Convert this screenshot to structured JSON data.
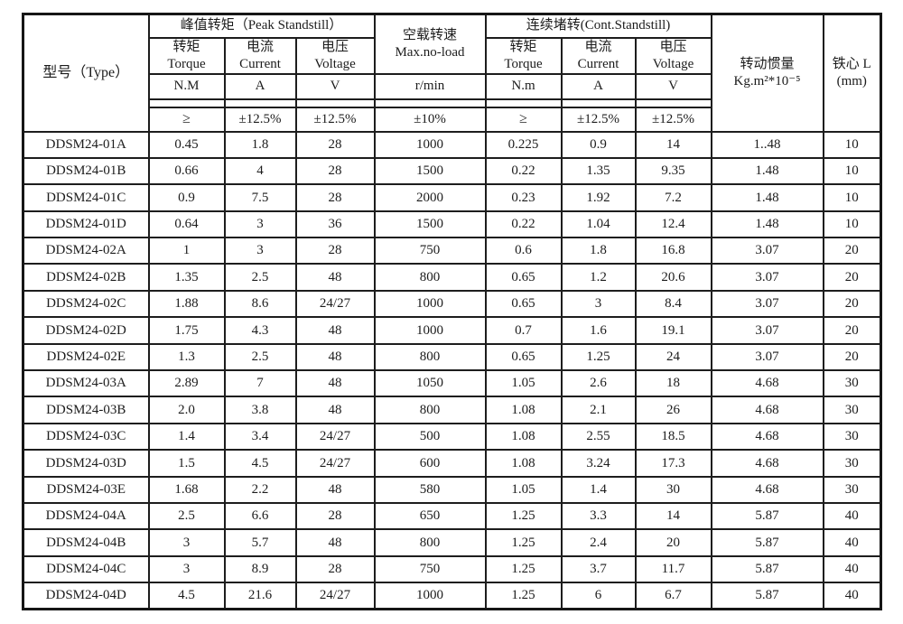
{
  "table": {
    "header": {
      "type_label": "型号（Type）",
      "peak_group": "峰值转矩（Peak Standstill）",
      "cont_group": "连续堵转(Cont.Standstill)",
      "noload_line1": "空载转速",
      "noload_line2": "Max.no-load",
      "inertia_line1": "转动惯量",
      "inertia_line2": "Kg.m²*10⁻⁵",
      "core_line1": "铁心 L",
      "core_line2": "(mm)",
      "sub": [
        {
          "cn": "转矩",
          "en": "Torque"
        },
        {
          "cn": "电流",
          "en": "Current"
        },
        {
          "cn": "电压",
          "en": "Voltage"
        },
        {
          "cn": "转矩",
          "en": "Torque"
        },
        {
          "cn": "电流",
          "en": "Current"
        },
        {
          "cn": "电压",
          "en": "Voltage"
        }
      ],
      "units": [
        "N.M",
        "A",
        "V",
        "r/min",
        "N.m",
        "A",
        "V"
      ],
      "tolerances": [
        "≥",
        "±12.5%",
        "±12.5%",
        "±10%",
        "≥",
        "±12.5%",
        "±12.5%"
      ]
    },
    "rows": [
      [
        "DDSM24-01A",
        "0.45",
        "1.8",
        "28",
        "1000",
        "0.225",
        "0.9",
        "14",
        "1..48",
        "10"
      ],
      [
        "DDSM24-01B",
        "0.66",
        "4",
        "28",
        "1500",
        "0.22",
        "1.35",
        "9.35",
        "1.48",
        "10"
      ],
      [
        "DDSM24-01C",
        "0.9",
        "7.5",
        "28",
        "2000",
        "0.23",
        "1.92",
        "7.2",
        "1.48",
        "10"
      ],
      [
        "DDSM24-01D",
        "0.64",
        "3",
        "36",
        "1500",
        "0.22",
        "1.04",
        "12.4",
        "1.48",
        "10"
      ],
      [
        "DDSM24-02A",
        "1",
        "3",
        "28",
        "750",
        "0.6",
        "1.8",
        "16.8",
        "3.07",
        "20"
      ],
      [
        "DDSM24-02B",
        "1.35",
        "2.5",
        "48",
        "800",
        "0.65",
        "1.2",
        "20.6",
        "3.07",
        "20"
      ],
      [
        "DDSM24-02C",
        "1.88",
        "8.6",
        "24/27",
        "1000",
        "0.65",
        "3",
        "8.4",
        "3.07",
        "20"
      ],
      [
        "DDSM24-02D",
        "1.75",
        "4.3",
        "48",
        "1000",
        "0.7",
        "1.6",
        "19.1",
        "3.07",
        "20"
      ],
      [
        "DDSM24-02E",
        "1.3",
        "2.5",
        "48",
        "800",
        "0.65",
        "1.25",
        "24",
        "3.07",
        "20"
      ],
      [
        "DDSM24-03A",
        "2.89",
        "7",
        "48",
        "1050",
        "1.05",
        "2.6",
        "18",
        "4.68",
        "30"
      ],
      [
        "DDSM24-03B",
        "2.0",
        "3.8",
        "48",
        "800",
        "1.08",
        "2.1",
        "26",
        "4.68",
        "30"
      ],
      [
        "DDSM24-03C",
        "1.4",
        "3.4",
        "24/27",
        "500",
        "1.08",
        "2.55",
        "18.5",
        "4.68",
        "30"
      ],
      [
        "DDSM24-03D",
        "1.5",
        "4.5",
        "24/27",
        "600",
        "1.08",
        "3.24",
        "17.3",
        "4.68",
        "30"
      ],
      [
        "DDSM24-03E",
        "1.68",
        "2.2",
        "48",
        "580",
        "1.05",
        "1.4",
        "30",
        "4.68",
        "30"
      ],
      [
        "DDSM24-04A",
        "2.5",
        "6.6",
        "28",
        "650",
        "1.25",
        "3.3",
        "14",
        "5.87",
        "40"
      ],
      [
        "DDSM24-04B",
        "3",
        "5.7",
        "48",
        "800",
        "1.25",
        "2.4",
        "20",
        "5.87",
        "40"
      ],
      [
        "DDSM24-04C",
        "3",
        "8.9",
        "28",
        "750",
        "1.25",
        "3.7",
        "11.7",
        "5.87",
        "40"
      ],
      [
        "DDSM24-04D",
        "4.5",
        "21.6",
        "24/27",
        "1000",
        "1.25",
        "6",
        "6.7",
        "5.87",
        "40"
      ]
    ]
  }
}
